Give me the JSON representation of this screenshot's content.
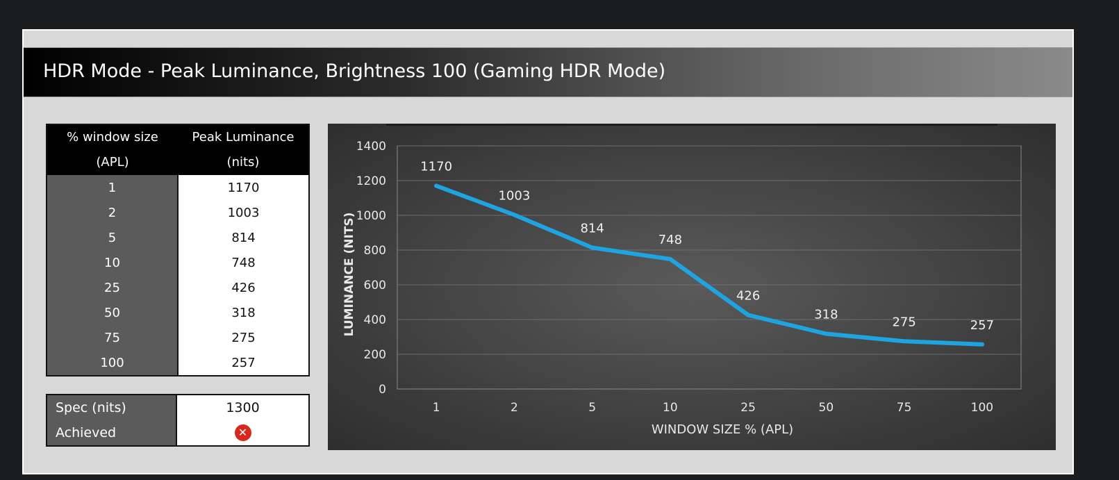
{
  "title": "HDR Mode - Peak Luminance, Brightness 100 (Gaming HDR Mode)",
  "table": {
    "header_col1_line1": "% window size",
    "header_col1_line2": "(APL)",
    "header_col2_line1": "Peak Luminance",
    "header_col2_line2": "(nits)",
    "rows": [
      {
        "window": "1",
        "nits": "1170"
      },
      {
        "window": "2",
        "nits": "1003"
      },
      {
        "window": "5",
        "nits": "814"
      },
      {
        "window": "10",
        "nits": "748"
      },
      {
        "window": "25",
        "nits": "426"
      },
      {
        "window": "50",
        "nits": "318"
      },
      {
        "window": "75",
        "nits": "275"
      },
      {
        "window": "100",
        "nits": "257"
      }
    ]
  },
  "spec": {
    "spec_label": "Spec (nits)",
    "spec_value": "1300",
    "achieved_label": "Achieved",
    "achieved_icon": "x-circle-icon",
    "achieved_color": "#d8281c"
  },
  "chart_data": {
    "type": "line",
    "categories": [
      "1",
      "2",
      "5",
      "10",
      "25",
      "50",
      "75",
      "100"
    ],
    "series": [
      {
        "values": [
          1170,
          1003,
          814,
          748,
          426,
          318,
          275,
          257
        ],
        "color": "#1ea4e0"
      }
    ],
    "data_labels": [
      "1170",
      "1003",
      "814",
      "748",
      "426",
      "318",
      "275",
      "257"
    ],
    "yticks": [
      "0",
      "200",
      "400",
      "600",
      "800",
      "1000",
      "1200",
      "1400"
    ],
    "xlabel": "WINDOW SIZE % (APL)",
    "ylabel": "LUMINANCE (NITS)",
    "ylim": [
      0,
      1400
    ],
    "grid": true,
    "legend": "none"
  }
}
